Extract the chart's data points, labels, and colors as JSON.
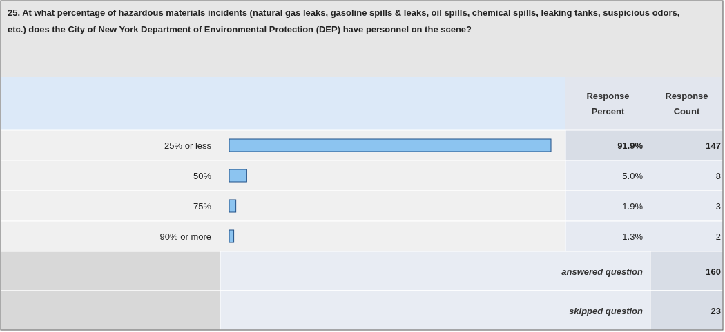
{
  "chart_data": {
    "type": "bar",
    "orientation": "horizontal",
    "title": "25. At what percentage of hazardous materials incidents (natural gas leaks, gasoline spills & leaks, oil spills, chemical spills, leaking tanks, suspicious odors, etc.) does the City of New York Department of Environmental Protection (DEP) have personnel on the scene?",
    "categories": [
      "25% or less",
      "50%",
      "75%",
      "90% or more"
    ],
    "values": [
      91.9,
      5.0,
      1.9,
      1.3
    ],
    "value_labels": [
      "91.9%",
      "5.0%",
      "1.9%",
      "1.3%"
    ],
    "color": "#8cc4f0",
    "annotations": [
      "Response Percent",
      "Response Count",
      "answered question",
      "160",
      "skipped question",
      "23",
      "147",
      "8",
      "3",
      "2"
    ]
  }
}
